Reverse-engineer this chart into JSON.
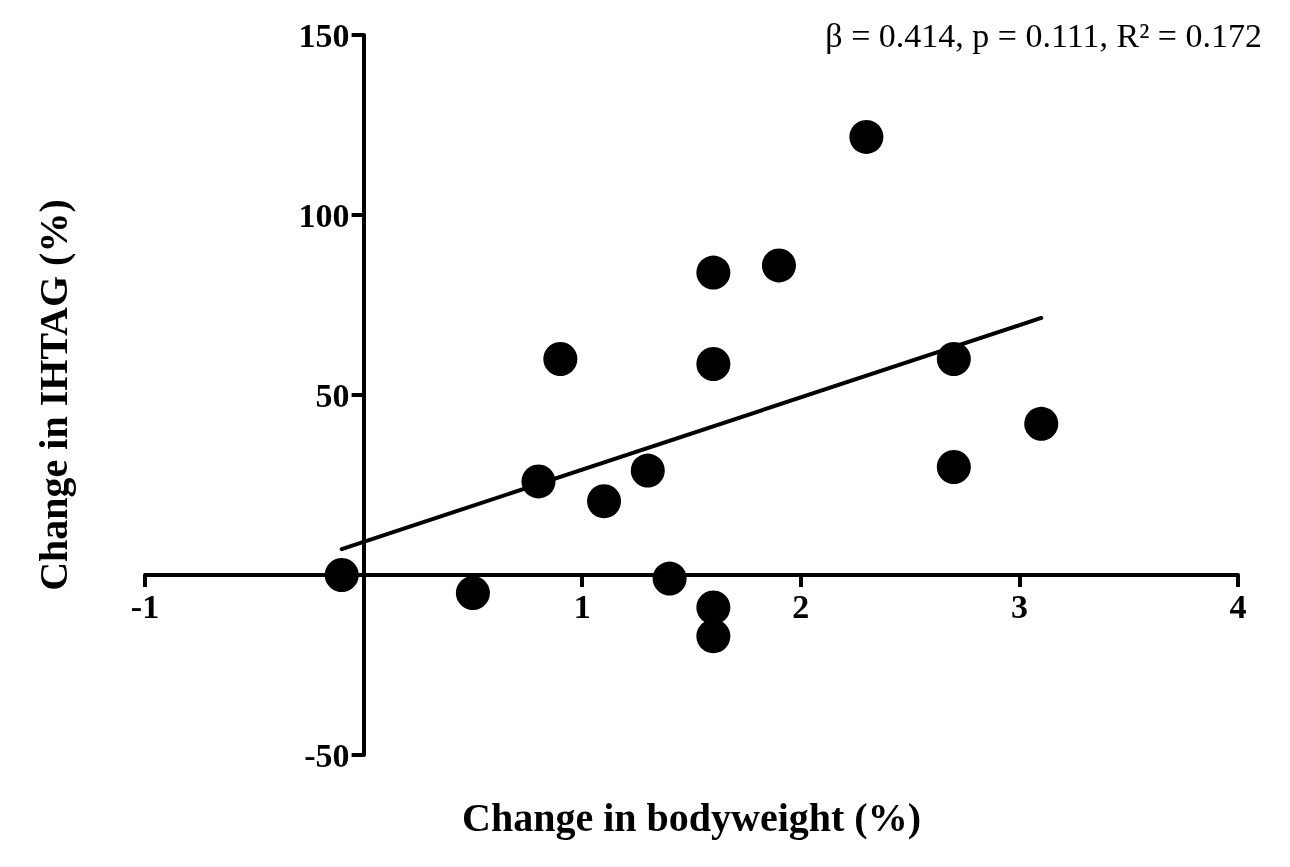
{
  "chart_data": {
    "type": "scatter",
    "xlabel": "Change in bodyweight (%)",
    "ylabel": "Change in IHTAG (%)",
    "annotations": [
      "β = 0.414, p = 0.111, R² = 0.172"
    ],
    "xlim": [
      -1,
      4
    ],
    "xticks": [
      -1,
      1,
      2,
      3,
      4
    ],
    "ylim": [
      -50,
      150
    ],
    "yticks": [
      -50,
      50,
      100,
      150
    ],
    "marker": "circle",
    "grid": false,
    "series": [
      {
        "color": "#000000",
        "x": [
          -0.1,
          0.5,
          0.8,
          0.9,
          1.1,
          1.3,
          1.4,
          1.6,
          1.6,
          1.6,
          1.6,
          1.9,
          2.3,
          2.7,
          2.7,
          3.1
        ],
        "values": [
          0,
          -5,
          26,
          60,
          20.5,
          29,
          -1,
          84,
          58.6,
          -9,
          -17,
          86,
          121.7,
          60,
          30,
          42
        ]
      },
      {
        "type": "line",
        "color": "#000000",
        "marker": "none",
        "x": [
          -0.1,
          3.1
        ],
        "values": [
          7.2,
          71.4
        ]
      }
    ]
  }
}
